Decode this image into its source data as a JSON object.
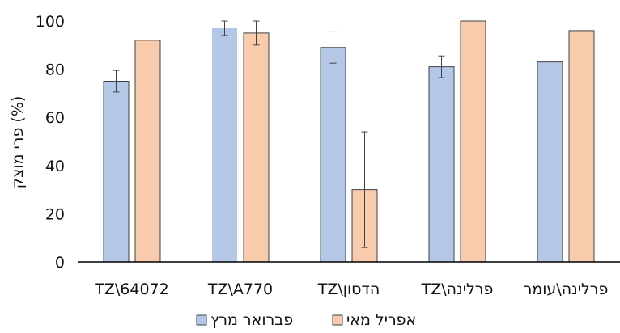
{
  "chart_data": {
    "type": "bar",
    "title": "",
    "xlabel": "",
    "ylabel": "פרי מוצק (%)",
    "ylim": [
      0,
      100
    ],
    "yticks": [
      0,
      20,
      40,
      60,
      80,
      100
    ],
    "grid": false,
    "legend_position": "bottom",
    "categories": [
      "TZ\\64072",
      "TZ\\A770",
      "TZ\\הדסון",
      "TZ\\פרלינה",
      "פרלינה\\עומר"
    ],
    "series": [
      {
        "name": "פברואר מרץ",
        "color": "#b4c7e7",
        "values": [
          75,
          97,
          89,
          81,
          83
        ],
        "errors": [
          4.5,
          3,
          6.5,
          4.5,
          0
        ]
      },
      {
        "name": "אפריל מאי",
        "color": "#f8cbad",
        "values": [
          92,
          95,
          30,
          100,
          96
        ],
        "errors": [
          0,
          5,
          24,
          0,
          0
        ]
      }
    ]
  }
}
